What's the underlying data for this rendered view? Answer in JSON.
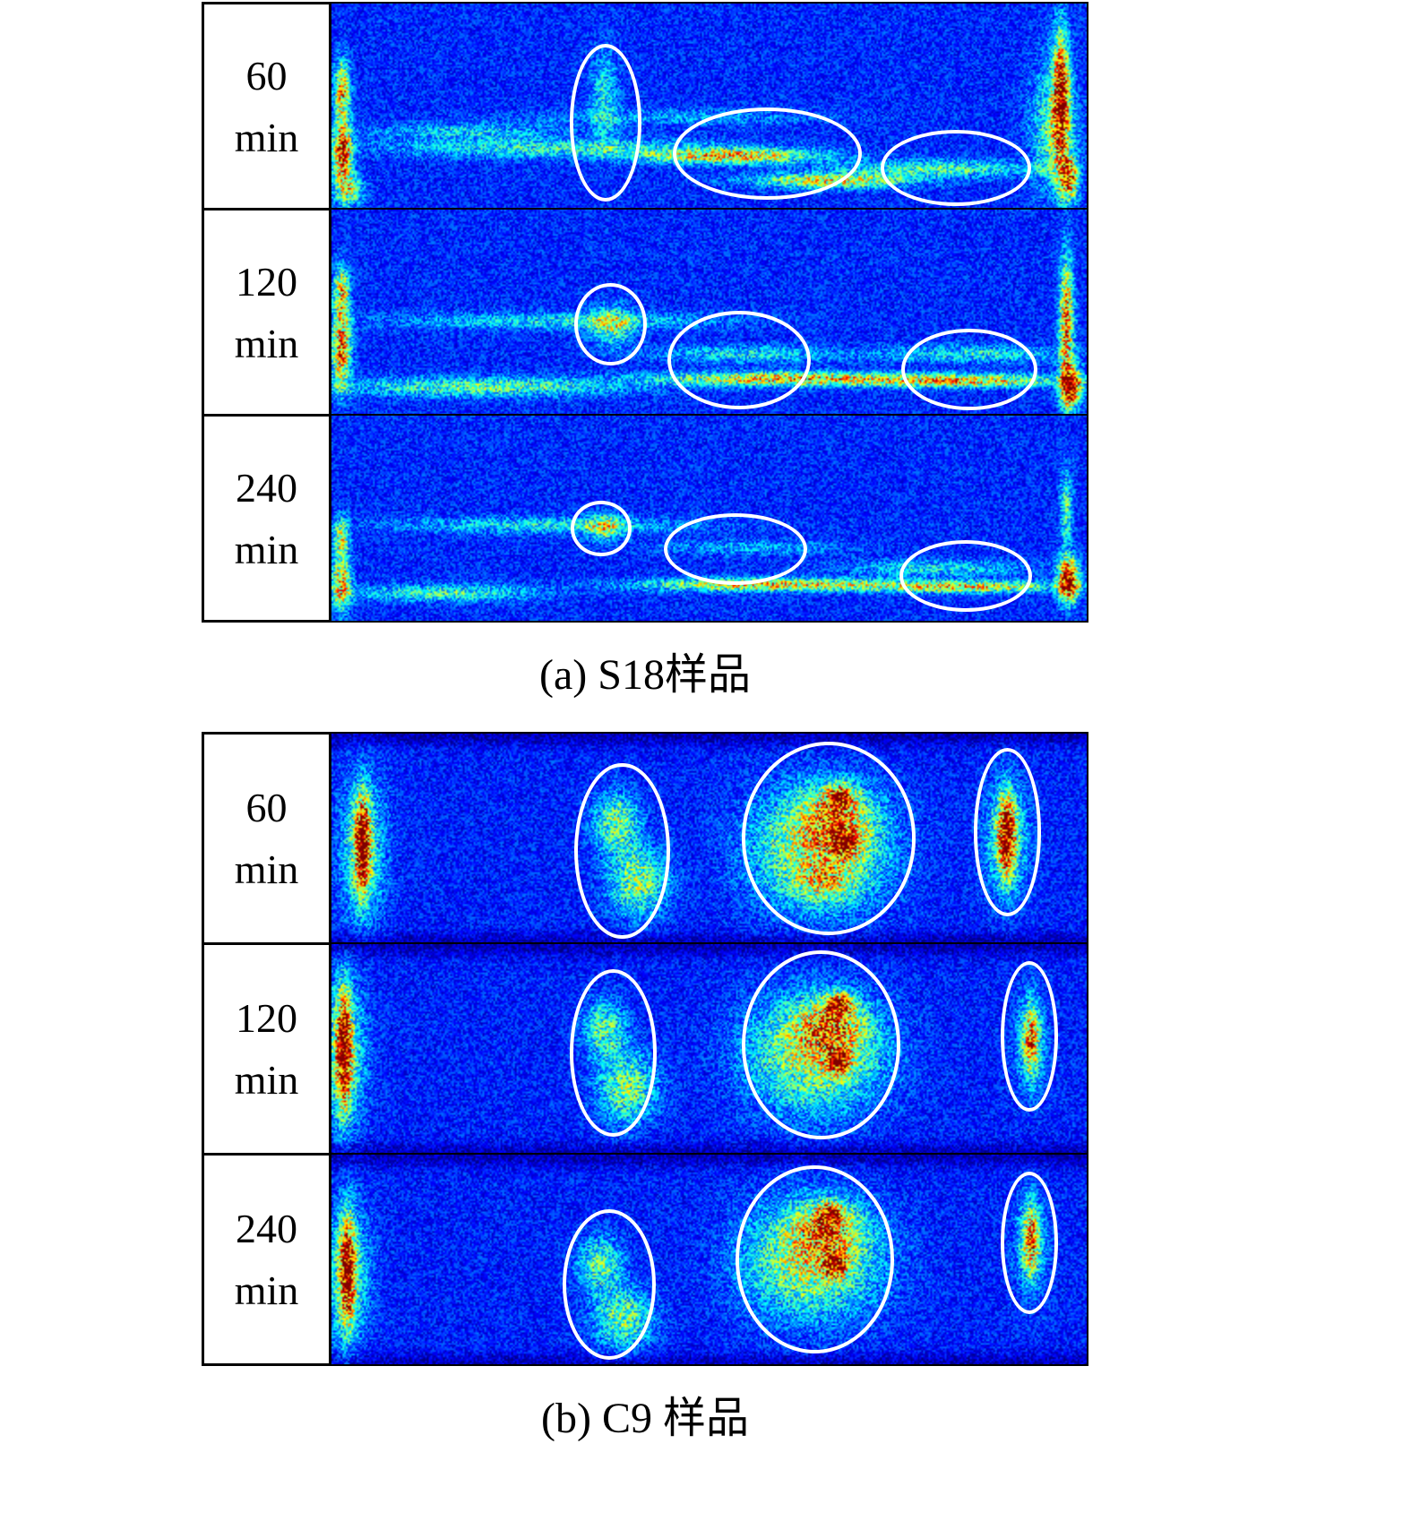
{
  "colors": {
    "annotation_ellipse": "#ffffff",
    "cell_border": "#000000",
    "background": "#ffffff"
  },
  "chart_data": {
    "type": "heatmap",
    "colormap": "jet",
    "legend_position": "none",
    "grid": false,
    "panels": [
      {
        "sample": "S18",
        "caption": "(a) S18样品",
        "rows": [
          {
            "label": "60\nmin",
            "heatmap": {
              "seed": 11,
              "base": 0.16,
              "noise": 0.18,
              "blobs": [
                [
                  0.013,
                  0.42,
                  0.01,
                  0.14,
                  0.55
                ],
                [
                  0.013,
                  0.72,
                  0.012,
                  0.14,
                  0.7
                ],
                [
                  0.022,
                  0.9,
                  0.018,
                  0.08,
                  0.4
                ],
                [
                  0.965,
                  0.45,
                  0.01,
                  0.3,
                  0.75
                ],
                [
                  0.955,
                  0.6,
                  0.028,
                  0.3,
                  0.3
                ],
                [
                  0.975,
                  0.85,
                  0.012,
                  0.1,
                  0.6
                ],
                [
                  0.36,
                  0.45,
                  0.018,
                  0.22,
                  0.2
                ],
                [
                  0.3,
                  0.7,
                  0.22,
                  0.045,
                  0.24
                ],
                [
                  0.53,
                  0.74,
                  0.11,
                  0.035,
                  0.5
                ],
                [
                  0.66,
                  0.86,
                  0.1,
                  0.035,
                  0.46
                ],
                [
                  0.8,
                  0.8,
                  0.13,
                  0.04,
                  0.28
                ],
                [
                  0.18,
                  0.62,
                  0.12,
                  0.04,
                  0.18
                ],
                [
                  0.45,
                  0.55,
                  0.2,
                  0.04,
                  0.12
                ]
              ]
            },
            "ellipses": [
              [
                0.363,
                0.58,
                0.048,
                0.385
              ],
              [
                0.577,
                0.73,
                0.125,
                0.225
              ],
              [
                0.827,
                0.8,
                0.1,
                0.185
              ]
            ]
          },
          {
            "label": "120\nmin",
            "heatmap": {
              "seed": 22,
              "base": 0.16,
              "noise": 0.18,
              "blobs": [
                [
                  0.012,
                  0.4,
                  0.01,
                  0.12,
                  0.48
                ],
                [
                  0.012,
                  0.68,
                  0.012,
                  0.18,
                  0.6
                ],
                [
                  0.972,
                  0.55,
                  0.009,
                  0.3,
                  0.62
                ],
                [
                  0.978,
                  0.86,
                  0.013,
                  0.09,
                  0.85
                ],
                [
                  0.37,
                  0.56,
                  0.028,
                  0.09,
                  0.32
                ],
                [
                  0.3,
                  0.54,
                  0.22,
                  0.04,
                  0.2
                ],
                [
                  0.2,
                  0.86,
                  0.18,
                  0.045,
                  0.3
                ],
                [
                  0.6,
                  0.82,
                  0.16,
                  0.032,
                  0.52
                ],
                [
                  0.84,
                  0.83,
                  0.13,
                  0.03,
                  0.48
                ],
                [
                  0.55,
                  0.7,
                  0.12,
                  0.04,
                  0.2
                ],
                [
                  0.85,
                  0.7,
                  0.12,
                  0.04,
                  0.22
                ]
              ]
            },
            "ellipses": [
              [
                0.369,
                0.56,
                0.048,
                0.2
              ],
              [
                0.54,
                0.735,
                0.095,
                0.24
              ],
              [
                0.845,
                0.78,
                0.09,
                0.2
              ]
            ]
          },
          {
            "label": "240\nmin",
            "heatmap": {
              "seed": 33,
              "base": 0.16,
              "noise": 0.18,
              "blobs": [
                [
                  0.012,
                  0.6,
                  0.01,
                  0.1,
                  0.42
                ],
                [
                  0.012,
                  0.82,
                  0.012,
                  0.12,
                  0.55
                ],
                [
                  0.975,
                  0.8,
                  0.013,
                  0.1,
                  0.88
                ],
                [
                  0.972,
                  0.45,
                  0.008,
                  0.2,
                  0.28
                ],
                [
                  0.36,
                  0.54,
                  0.022,
                  0.06,
                  0.35
                ],
                [
                  0.28,
                  0.53,
                  0.2,
                  0.04,
                  0.2
                ],
                [
                  0.58,
                  0.82,
                  0.16,
                  0.03,
                  0.5
                ],
                [
                  0.84,
                  0.83,
                  0.12,
                  0.028,
                  0.46
                ],
                [
                  0.55,
                  0.64,
                  0.12,
                  0.035,
                  0.14
                ],
                [
                  0.8,
                  0.74,
                  0.12,
                  0.04,
                  0.2
                ],
                [
                  0.15,
                  0.86,
                  0.12,
                  0.04,
                  0.26
                ]
              ]
            },
            "ellipses": [
              [
                0.357,
                0.55,
                0.04,
                0.135
              ],
              [
                0.535,
                0.65,
                0.095,
                0.175
              ],
              [
                0.84,
                0.78,
                0.088,
                0.175
              ]
            ]
          }
        ]
      },
      {
        "sample": "C9",
        "caption": "(b) C9 样品",
        "rows": [
          {
            "label": "60\nmin",
            "heatmap": {
              "seed": 44,
              "base": 0.15,
              "noise": 0.18,
              "blobs": [
                [
                  0.5,
                  0.0,
                  9.0,
                  0.055,
                  -0.1
                ],
                [
                  0.5,
                  1.0,
                  9.0,
                  0.055,
                  -0.1
                ],
                [
                  0.04,
                  0.52,
                  0.01,
                  0.22,
                  0.75
                ],
                [
                  0.04,
                  0.55,
                  0.03,
                  0.32,
                  0.28
                ],
                [
                  0.375,
                  0.42,
                  0.03,
                  0.14,
                  0.33
                ],
                [
                  0.405,
                  0.7,
                  0.038,
                  0.16,
                  0.35
                ],
                [
                  0.645,
                  0.55,
                  0.085,
                  0.27,
                  0.42
                ],
                [
                  0.665,
                  0.4,
                  0.05,
                  0.14,
                  0.32
                ],
                [
                  0.672,
                  0.3,
                  0.018,
                  0.06,
                  0.58
                ],
                [
                  0.68,
                  0.52,
                  0.016,
                  0.06,
                  0.55
                ],
                [
                  0.655,
                  0.7,
                  0.04,
                  0.08,
                  0.25
                ],
                [
                  0.893,
                  0.48,
                  0.011,
                  0.18,
                  0.72
                ],
                [
                  0.893,
                  0.5,
                  0.028,
                  0.26,
                  0.28
                ]
              ]
            },
            "ellipses": [
              [
                0.385,
                0.56,
                0.063,
                0.42
              ],
              [
                0.658,
                0.5,
                0.115,
                0.46
              ],
              [
                0.895,
                0.47,
                0.045,
                0.4
              ]
            ]
          },
          {
            "label": "120\nmin",
            "heatmap": {
              "seed": 55,
              "base": 0.15,
              "noise": 0.18,
              "blobs": [
                [
                  0.5,
                  0.0,
                  9.0,
                  0.055,
                  -0.1
                ],
                [
                  0.5,
                  1.0,
                  9.0,
                  0.055,
                  -0.1
                ],
                [
                  0.015,
                  0.5,
                  0.01,
                  0.26,
                  0.75
                ],
                [
                  0.015,
                  0.52,
                  0.028,
                  0.34,
                  0.3
                ],
                [
                  0.36,
                  0.4,
                  0.028,
                  0.13,
                  0.3
                ],
                [
                  0.39,
                  0.68,
                  0.038,
                  0.16,
                  0.34
                ],
                [
                  0.64,
                  0.52,
                  0.085,
                  0.26,
                  0.42
                ],
                [
                  0.66,
                  0.38,
                  0.045,
                  0.12,
                  0.35
                ],
                [
                  0.672,
                  0.28,
                  0.016,
                  0.05,
                  0.58
                ],
                [
                  0.67,
                  0.55,
                  0.016,
                  0.06,
                  0.52
                ],
                [
                  0.925,
                  0.45,
                  0.01,
                  0.16,
                  0.45
                ],
                [
                  0.925,
                  0.47,
                  0.022,
                  0.22,
                  0.2
                ]
              ]
            },
            "ellipses": [
              [
                0.373,
                0.52,
                0.058,
                0.4
              ],
              [
                0.648,
                0.48,
                0.105,
                0.45
              ],
              [
                0.924,
                0.44,
                0.038,
                0.36
              ]
            ]
          },
          {
            "label": "240\nmin",
            "heatmap": {
              "seed": 66,
              "base": 0.15,
              "noise": 0.18,
              "blobs": [
                [
                  0.5,
                  0.0,
                  9.0,
                  0.055,
                  -0.1
                ],
                [
                  0.5,
                  1.0,
                  9.0,
                  0.055,
                  -0.1
                ],
                [
                  0.02,
                  0.55,
                  0.01,
                  0.24,
                  0.72
                ],
                [
                  0.02,
                  0.57,
                  0.028,
                  0.32,
                  0.28
                ],
                [
                  0.355,
                  0.52,
                  0.028,
                  0.13,
                  0.3
                ],
                [
                  0.385,
                  0.78,
                  0.038,
                  0.14,
                  0.33
                ],
                [
                  0.635,
                  0.5,
                  0.085,
                  0.26,
                  0.42
                ],
                [
                  0.655,
                  0.35,
                  0.045,
                  0.12,
                  0.35
                ],
                [
                  0.66,
                  0.28,
                  0.016,
                  0.05,
                  0.58
                ],
                [
                  0.665,
                  0.52,
                  0.016,
                  0.06,
                  0.55
                ],
                [
                  0.925,
                  0.4,
                  0.01,
                  0.16,
                  0.48
                ],
                [
                  0.925,
                  0.42,
                  0.022,
                  0.22,
                  0.2
                ]
              ]
            },
            "ellipses": [
              [
                0.368,
                0.62,
                0.062,
                0.36
              ],
              [
                0.64,
                0.5,
                0.105,
                0.45
              ],
              [
                0.924,
                0.42,
                0.038,
                0.34
              ]
            ]
          }
        ]
      }
    ]
  }
}
